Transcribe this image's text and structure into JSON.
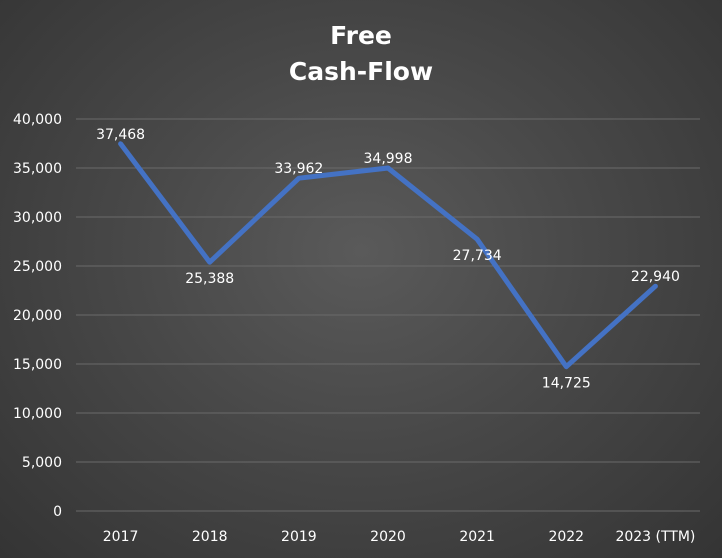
{
  "chart_data": {
    "type": "line",
    "title_lines": [
      "Free",
      "Cash-Flow"
    ],
    "categories": [
      "2017",
      "2018",
      "2019",
      "2020",
      "2021",
      "2022",
      "2023 (TTM)"
    ],
    "series": [
      {
        "values": [
          37468,
          25388,
          33962,
          34998,
          27734,
          14725,
          22940
        ]
      }
    ],
    "data_labels": [
      "37,468",
      "25,388",
      "33,962",
      "34,998",
      "27,734",
      "14,725",
      "22,940"
    ],
    "y_ticks": [
      "0",
      "5,000",
      "10,000",
      "15,000",
      "20,000",
      "25,000",
      "30,000",
      "35,000",
      "40,000"
    ],
    "ylim": [
      0,
      40000
    ],
    "ystep": 5000,
    "grid": true,
    "legend": "none",
    "colors": {
      "line": "#4472C4",
      "grid": "#6a6a6a",
      "text": "#ffffff"
    }
  }
}
